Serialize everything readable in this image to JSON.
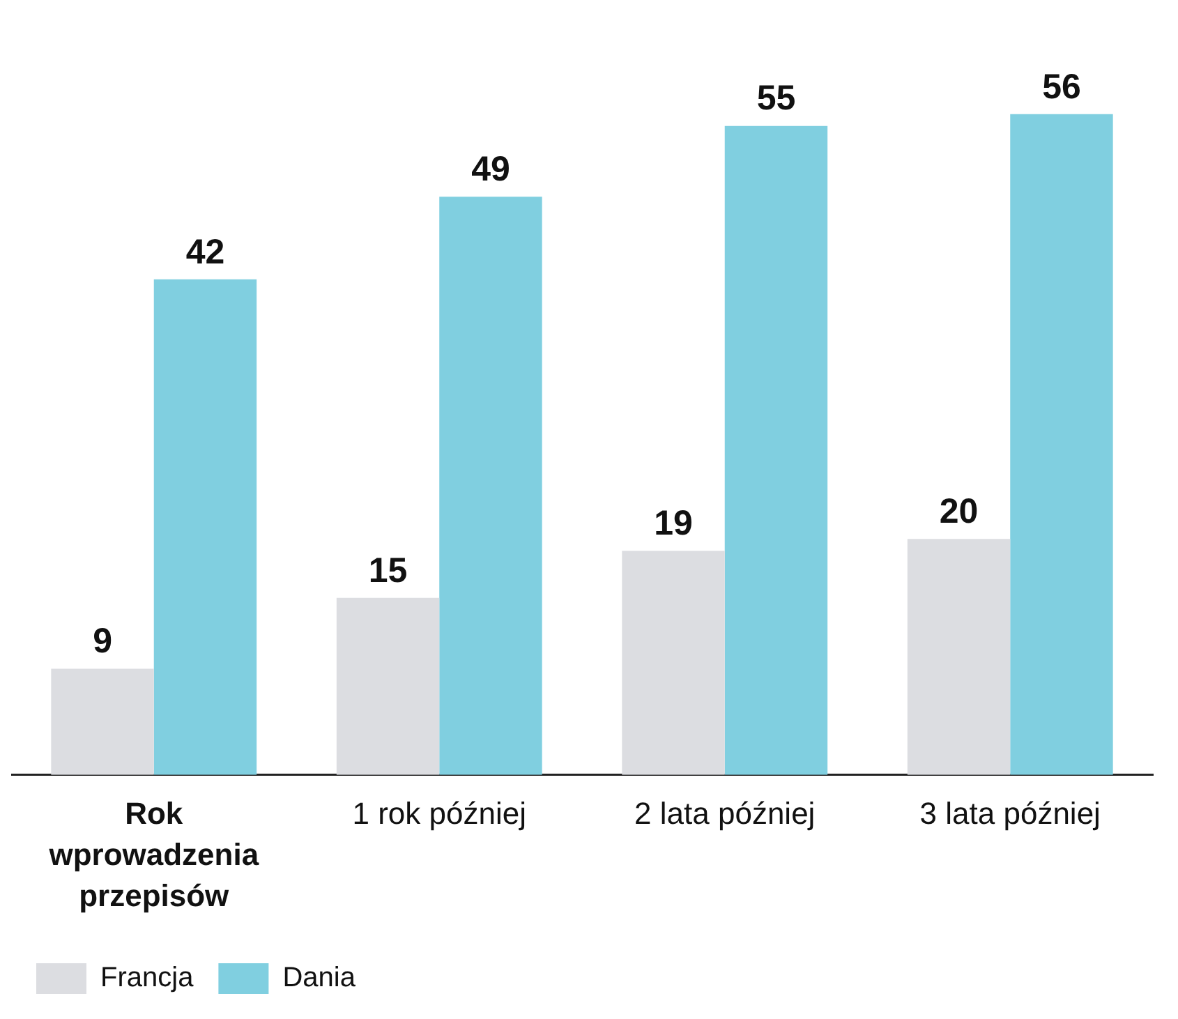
{
  "chart_data": {
    "type": "bar",
    "categories": [
      "Rok wprowadzenia przepisów",
      "1 rok później",
      "2 lata później",
      "3 lata później"
    ],
    "series": [
      {
        "name": "Francja",
        "color": "#dcdde1",
        "values": [
          9,
          15,
          19,
          20
        ]
      },
      {
        "name": "Dania",
        "color": "#80cfe0",
        "values": [
          42,
          49,
          55,
          56
        ]
      }
    ],
    "data_labels": true,
    "legend": "bottom left",
    "grid": false
  }
}
